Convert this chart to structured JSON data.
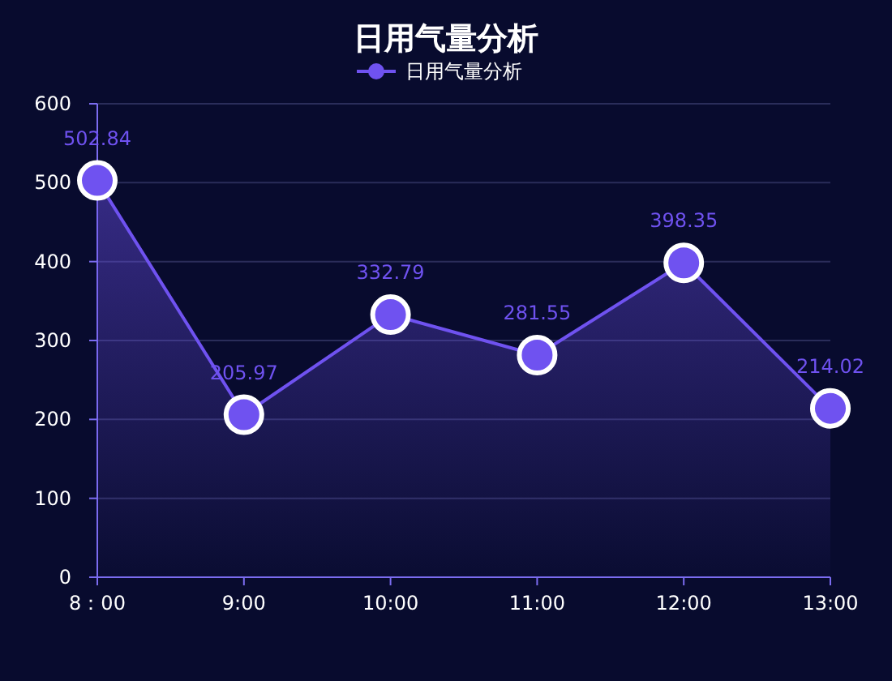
{
  "chart_data": {
    "type": "area",
    "title": "日用气量分析",
    "categories": [
      "8：00",
      "9:00",
      "10:00",
      "11:00",
      "12:00",
      "13:00"
    ],
    "series": [
      {
        "name": "日用气量分析",
        "color": "#6f52f0",
        "values": [
          502.84,
          205.97,
          332.79,
          281.55,
          398.35,
          214.02
        ]
      }
    ],
    "ylim": [
      0,
      600
    ],
    "yticks": [
      0,
      100,
      200,
      300,
      400,
      500,
      600
    ],
    "grid": "y",
    "legend": "top",
    "marker": "circle",
    "line_style": "solid",
    "data_labels": true
  }
}
